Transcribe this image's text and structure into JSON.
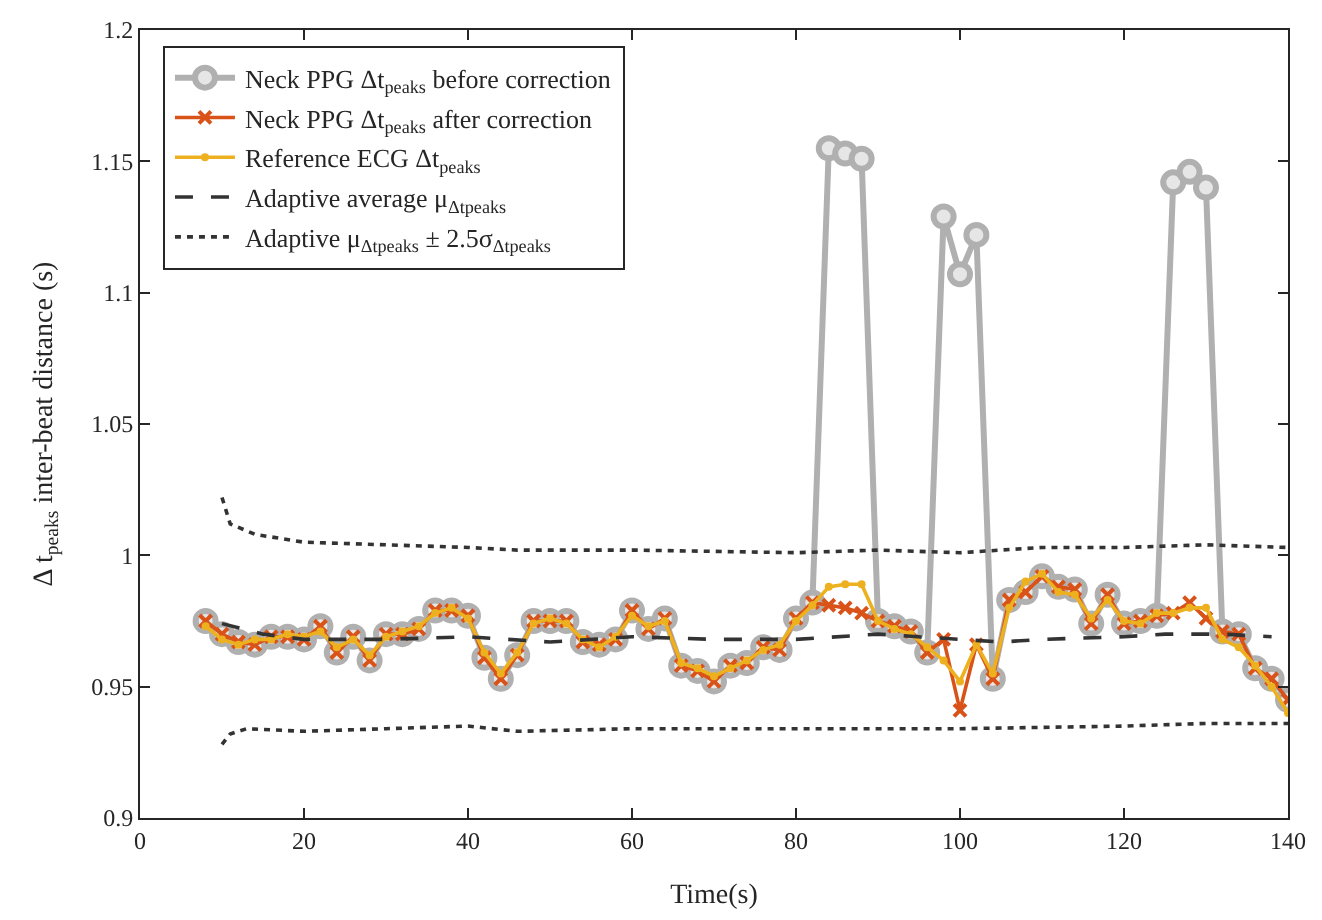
{
  "chart_data": {
    "type": "line",
    "xlabel": "Time(s)",
    "ylabel": "Δ t$_{peaks}$ inter-beat distance (s)",
    "xlim": [
      0,
      140
    ],
    "xticks": [
      0,
      20,
      40,
      60,
      80,
      100,
      120,
      140
    ],
    "ylim": [
      0.9,
      1.2
    ],
    "yticks": [
      0.9,
      0.95,
      1,
      1.05,
      1.1,
      1.15,
      1.2
    ],
    "legend": "top left",
    "x": [
      8,
      10,
      12,
      14,
      16,
      18,
      20,
      22,
      24,
      26,
      28,
      30,
      32,
      34,
      36,
      38,
      40,
      42,
      44,
      46,
      48,
      50,
      52,
      54,
      56,
      58,
      60,
      62,
      64,
      66,
      68,
      70,
      72,
      74,
      76,
      78,
      80,
      82,
      84,
      86,
      88,
      90,
      92,
      94,
      96,
      98,
      100,
      102,
      104,
      106,
      108,
      110,
      112,
      114,
      116,
      118,
      120,
      122,
      124,
      126,
      128,
      130,
      132,
      134,
      136,
      138,
      140
    ],
    "series": [
      {
        "name": "Neck PPG Δt$_{peaks}$ before correction",
        "color": "#b0b0b0",
        "marker": "circle",
        "line_style": "solid",
        "values": [
          0.975,
          0.97,
          0.967,
          0.966,
          0.969,
          0.969,
          0.968,
          0.973,
          0.963,
          0.969,
          0.96,
          0.97,
          0.97,
          0.972,
          0.979,
          0.979,
          0.977,
          0.961,
          0.953,
          0.962,
          0.975,
          0.975,
          0.975,
          0.967,
          0.966,
          0.968,
          0.979,
          0.972,
          0.976,
          0.958,
          0.956,
          0.952,
          0.958,
          0.959,
          0.965,
          0.964,
          0.976,
          0.982,
          1.155,
          1.153,
          1.151,
          0.975,
          0.973,
          0.971,
          0.963,
          1.129,
          1.107,
          1.122,
          0.953,
          0.983,
          0.986,
          0.992,
          0.988,
          0.987,
          0.974,
          0.985,
          0.974,
          0.975,
          0.977,
          1.142,
          1.146,
          1.14,
          0.971,
          0.97,
          0.957,
          0.953,
          0.945
        ]
      },
      {
        "name": "Neck PPG Δt$_{peaks}$ after correction",
        "color": "#d95319",
        "marker": "cross",
        "line_style": "solid",
        "values": [
          0.975,
          0.97,
          0.967,
          0.966,
          0.969,
          0.969,
          0.968,
          0.973,
          0.963,
          0.969,
          0.96,
          0.97,
          0.97,
          0.972,
          0.979,
          0.979,
          0.977,
          0.961,
          0.953,
          0.962,
          0.975,
          0.975,
          0.975,
          0.967,
          0.966,
          0.968,
          0.979,
          0.972,
          0.976,
          0.958,
          0.956,
          0.952,
          0.958,
          0.959,
          0.965,
          0.964,
          0.976,
          0.982,
          0.981,
          0.98,
          0.978,
          0.975,
          0.973,
          0.971,
          0.963,
          0.968,
          0.941,
          0.966,
          0.953,
          0.983,
          0.986,
          0.992,
          0.988,
          0.987,
          0.974,
          0.985,
          0.974,
          0.975,
          0.977,
          0.978,
          0.982,
          0.976,
          0.971,
          0.97,
          0.957,
          0.953,
          0.945
        ]
      },
      {
        "name": "Reference ECG Δt$_{peaks}$",
        "color": "#edb120",
        "marker": "circle",
        "line_style": "solid",
        "values": [
          0.973,
          0.968,
          0.966,
          0.968,
          0.968,
          0.97,
          0.969,
          0.971,
          0.965,
          0.968,
          0.962,
          0.969,
          0.971,
          0.973,
          0.978,
          0.98,
          0.976,
          0.963,
          0.955,
          0.963,
          0.974,
          0.976,
          0.974,
          0.968,
          0.965,
          0.969,
          0.977,
          0.973,
          0.975,
          0.959,
          0.957,
          0.954,
          0.957,
          0.96,
          0.964,
          0.966,
          0.975,
          0.981,
          0.988,
          0.989,
          0.989,
          0.975,
          0.972,
          0.97,
          0.965,
          0.96,
          0.952,
          0.966,
          0.955,
          0.98,
          0.99,
          0.993,
          0.986,
          0.985,
          0.976,
          0.983,
          0.975,
          0.974,
          0.978,
          0.978,
          0.98,
          0.98,
          0.968,
          0.965,
          0.958,
          0.95,
          0.94
        ]
      },
      {
        "name": "Adaptive average μ$_{Δtpeaks}$",
        "color": "#333333",
        "marker": "none",
        "line_style": "dashed",
        "x": [
          10,
          15,
          20,
          30,
          40,
          50,
          60,
          70,
          80,
          90,
          100,
          105,
          110,
          120,
          125,
          132,
          138
        ],
        "values": [
          0.974,
          0.97,
          0.968,
          0.968,
          0.969,
          0.967,
          0.969,
          0.968,
          0.968,
          0.97,
          0.968,
          0.967,
          0.968,
          0.969,
          0.97,
          0.97,
          0.969
        ]
      },
      {
        "name": "Adaptive μ$_{Δtpeaks}$ ± 2.5σ$_{Δtpeaks}$",
        "color": "#333333",
        "marker": "none",
        "line_style": "dotted",
        "x": [
          10,
          11,
          14,
          20,
          30,
          40,
          46,
          60,
          80,
          90,
          100,
          110,
          120,
          130,
          140
        ],
        "values": [
          1.022,
          1.012,
          1.008,
          1.005,
          1.004,
          1.003,
          1.002,
          1.002,
          1.001,
          1.002,
          1.001,
          1.003,
          1.003,
          1.004,
          1.003
        ]
      },
      {
        "color": "#333333",
        "marker": "none",
        "line_style": "dotted",
        "x": [
          10,
          11,
          13,
          20,
          30,
          40,
          46,
          60,
          80,
          100,
          120,
          130,
          140
        ],
        "values": [
          0.928,
          0.932,
          0.934,
          0.933,
          0.934,
          0.935,
          0.933,
          0.934,
          0.934,
          0.934,
          0.935,
          0.936,
          0.936
        ]
      }
    ]
  }
}
